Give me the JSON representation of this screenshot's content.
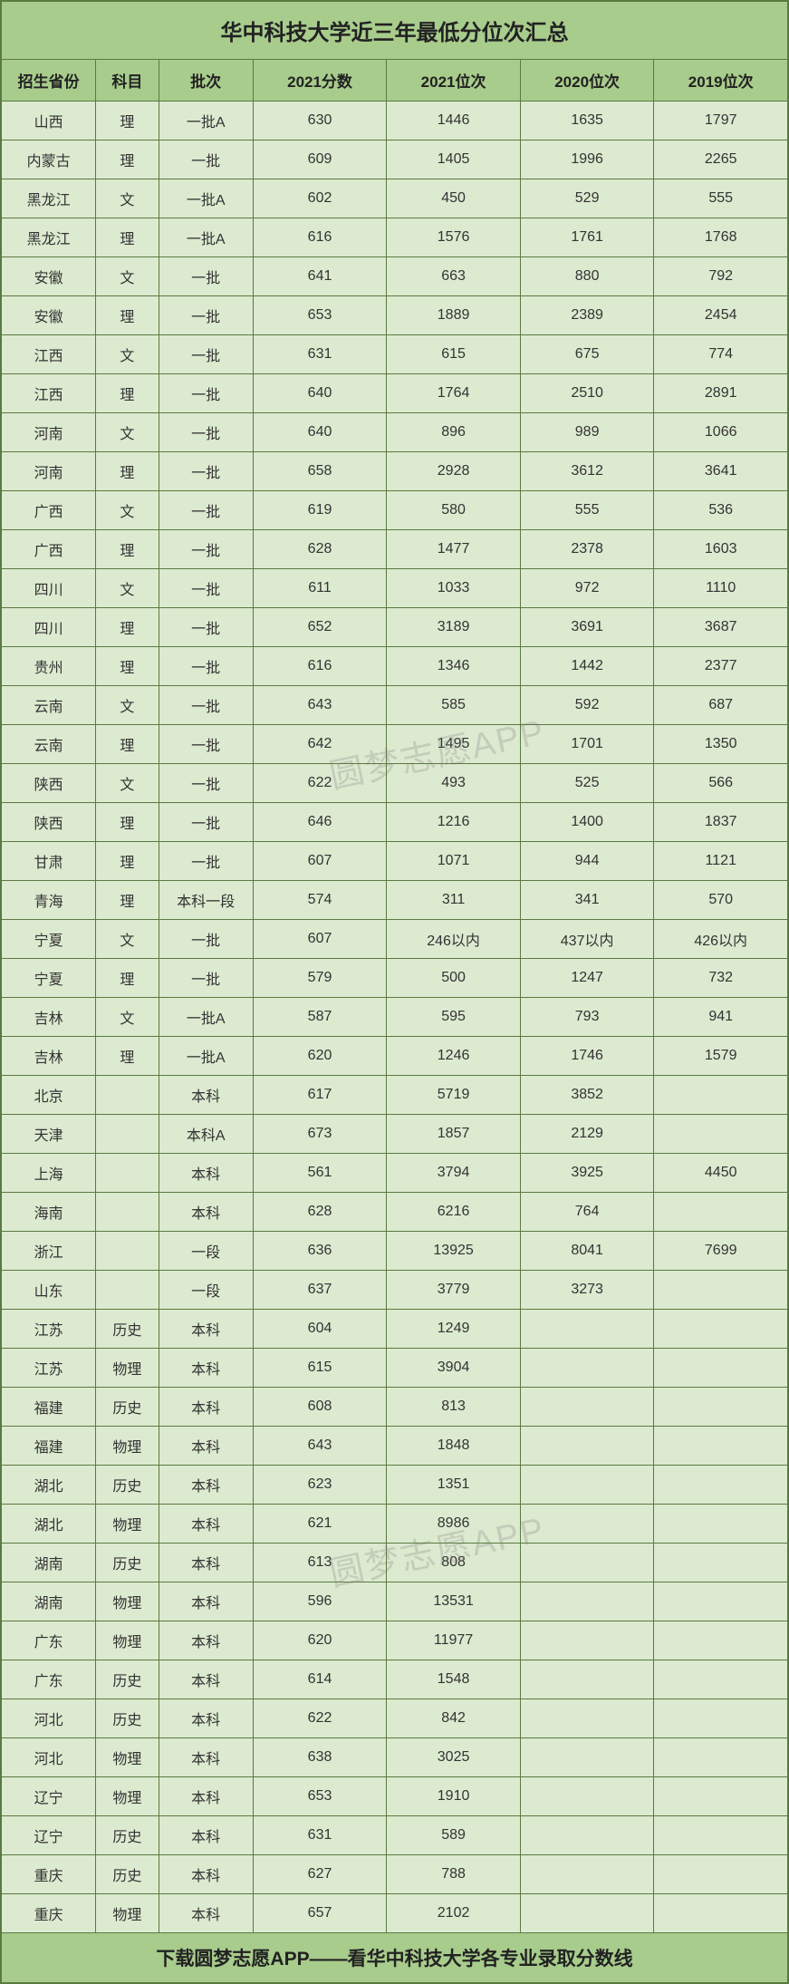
{
  "title": "华中科技大学近三年最低分位次汇总",
  "footer": "下载圆梦志愿APP——看华中科技大学各专业录取分数线",
  "watermark": "圆梦志愿APP",
  "colors": {
    "header_bg": "#a8cc8c",
    "cell_bg": "#dcead0",
    "border": "#5a7a3f",
    "text": "#333"
  },
  "columns": [
    "招生省份",
    "科目",
    "批次",
    "2021分数",
    "2021位次",
    "2020位次",
    "2019位次"
  ],
  "rows": [
    [
      "山西",
      "理",
      "一批A",
      "630",
      "1446",
      "1635",
      "1797"
    ],
    [
      "内蒙古",
      "理",
      "一批",
      "609",
      "1405",
      "1996",
      "2265"
    ],
    [
      "黑龙江",
      "文",
      "一批A",
      "602",
      "450",
      "529",
      "555"
    ],
    [
      "黑龙江",
      "理",
      "一批A",
      "616",
      "1576",
      "1761",
      "1768"
    ],
    [
      "安徽",
      "文",
      "一批",
      "641",
      "663",
      "880",
      "792"
    ],
    [
      "安徽",
      "理",
      "一批",
      "653",
      "1889",
      "2389",
      "2454"
    ],
    [
      "江西",
      "文",
      "一批",
      "631",
      "615",
      "675",
      "774"
    ],
    [
      "江西",
      "理",
      "一批",
      "640",
      "1764",
      "2510",
      "2891"
    ],
    [
      "河南",
      "文",
      "一批",
      "640",
      "896",
      "989",
      "1066"
    ],
    [
      "河南",
      "理",
      "一批",
      "658",
      "2928",
      "3612",
      "3641"
    ],
    [
      "广西",
      "文",
      "一批",
      "619",
      "580",
      "555",
      "536"
    ],
    [
      "广西",
      "理",
      "一批",
      "628",
      "1477",
      "2378",
      "1603"
    ],
    [
      "四川",
      "文",
      "一批",
      "611",
      "1033",
      "972",
      "1110"
    ],
    [
      "四川",
      "理",
      "一批",
      "652",
      "3189",
      "3691",
      "3687"
    ],
    [
      "贵州",
      "理",
      "一批",
      "616",
      "1346",
      "1442",
      "2377"
    ],
    [
      "云南",
      "文",
      "一批",
      "643",
      "585",
      "592",
      "687"
    ],
    [
      "云南",
      "理",
      "一批",
      "642",
      "1495",
      "1701",
      "1350"
    ],
    [
      "陕西",
      "文",
      "一批",
      "622",
      "493",
      "525",
      "566"
    ],
    [
      "陕西",
      "理",
      "一批",
      "646",
      "1216",
      "1400",
      "1837"
    ],
    [
      "甘肃",
      "理",
      "一批",
      "607",
      "1071",
      "944",
      "1121"
    ],
    [
      "青海",
      "理",
      "本科一段",
      "574",
      "311",
      "341",
      "570"
    ],
    [
      "宁夏",
      "文",
      "一批",
      "607",
      "246以内",
      "437以内",
      "426以内"
    ],
    [
      "宁夏",
      "理",
      "一批",
      "579",
      "500",
      "1247",
      "732"
    ],
    [
      "吉林",
      "文",
      "一批A",
      "587",
      "595",
      "793",
      "941"
    ],
    [
      "吉林",
      "理",
      "一批A",
      "620",
      "1246",
      "1746",
      "1579"
    ],
    [
      "北京",
      "",
      "本科",
      "617",
      "5719",
      "3852",
      ""
    ],
    [
      "天津",
      "",
      "本科A",
      "673",
      "1857",
      "2129",
      ""
    ],
    [
      "上海",
      "",
      "本科",
      "561",
      "3794",
      "3925",
      "4450"
    ],
    [
      "海南",
      "",
      "本科",
      "628",
      "6216",
      "764",
      ""
    ],
    [
      "浙江",
      "",
      "一段",
      "636",
      "13925",
      "8041",
      "7699"
    ],
    [
      "山东",
      "",
      "一段",
      "637",
      "3779",
      "3273",
      ""
    ],
    [
      "江苏",
      "历史",
      "本科",
      "604",
      "1249",
      "",
      ""
    ],
    [
      "江苏",
      "物理",
      "本科",
      "615",
      "3904",
      "",
      ""
    ],
    [
      "福建",
      "历史",
      "本科",
      "608",
      "813",
      "",
      ""
    ],
    [
      "福建",
      "物理",
      "本科",
      "643",
      "1848",
      "",
      ""
    ],
    [
      "湖北",
      "历史",
      "本科",
      "623",
      "1351",
      "",
      ""
    ],
    [
      "湖北",
      "物理",
      "本科",
      "621",
      "8986",
      "",
      ""
    ],
    [
      "湖南",
      "历史",
      "本科",
      "613",
      "808",
      "",
      ""
    ],
    [
      "湖南",
      "物理",
      "本科",
      "596",
      "13531",
      "",
      ""
    ],
    [
      "广东",
      "物理",
      "本科",
      "620",
      "11977",
      "",
      ""
    ],
    [
      "广东",
      "历史",
      "本科",
      "614",
      "1548",
      "",
      ""
    ],
    [
      "河北",
      "历史",
      "本科",
      "622",
      "842",
      "",
      ""
    ],
    [
      "河北",
      "物理",
      "本科",
      "638",
      "3025",
      "",
      ""
    ],
    [
      "辽宁",
      "物理",
      "本科",
      "653",
      "1910",
      "",
      ""
    ],
    [
      "辽宁",
      "历史",
      "本科",
      "631",
      "589",
      "",
      ""
    ],
    [
      "重庆",
      "历史",
      "本科",
      "627",
      "788",
      "",
      ""
    ],
    [
      "重庆",
      "物理",
      "本科",
      "657",
      "2102",
      "",
      ""
    ]
  ]
}
